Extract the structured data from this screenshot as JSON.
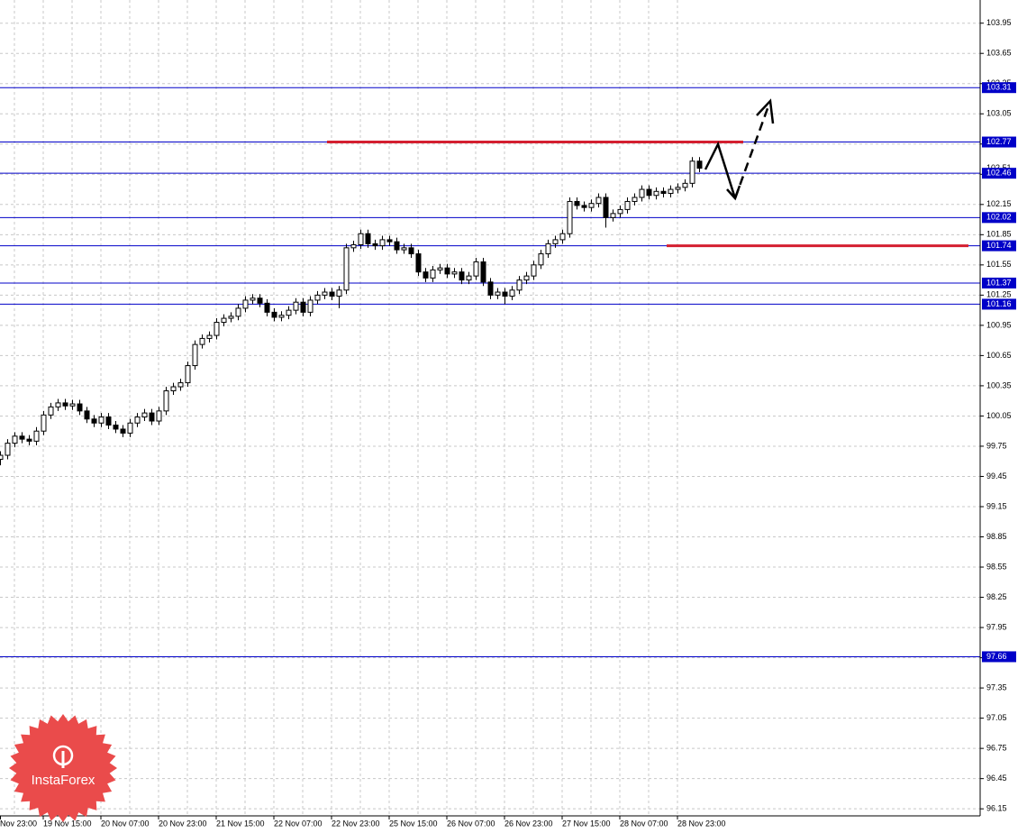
{
  "chart_data": {
    "type": "candlestick",
    "categories": [
      "Nov 23:00",
      null,
      null,
      null,
      null,
      null,
      null,
      null,
      "19 Nov 15:00",
      null,
      null,
      null,
      null,
      null,
      null,
      null,
      "20 Nov 07:00",
      null,
      null,
      null,
      null,
      null,
      null,
      null,
      "20 Nov 23:00",
      null,
      null,
      null,
      null,
      null,
      null,
      null,
      "21 Nov 15:00",
      null,
      null,
      null,
      null,
      null,
      null,
      null,
      "22 Nov 07:00",
      null,
      null,
      null,
      null,
      null,
      null,
      null,
      "22 Nov 23:00",
      null,
      null,
      null,
      null,
      null,
      null,
      null,
      "25 Nov 15:00",
      null,
      null,
      null,
      null,
      null,
      null,
      null,
      "26 Nov 07:00",
      null,
      null,
      null,
      null,
      null,
      null,
      null,
      "26 Nov 23:00",
      null,
      null,
      null,
      null,
      null,
      null,
      null,
      "27 Nov 15:00",
      null,
      null,
      null,
      null,
      null,
      null,
      null,
      "28 Nov 07:00",
      null,
      null,
      null,
      null,
      null,
      null,
      null,
      "28 Nov 23:00",
      null,
      null,
      null
    ],
    "open": [
      99.66,
      99.7,
      99.62,
      99.66,
      99.78,
      99.85,
      99.82,
      99.8,
      99.9,
      100.06,
      100.14,
      100.18,
      100.15,
      100.17,
      100.1,
      100.02,
      99.98,
      100.04,
      99.96,
      99.92,
      99.88,
      99.98,
      100.04,
      100.08,
      100.0,
      100.1,
      100.3,
      100.34,
      100.38,
      100.55,
      100.76,
      100.82,
      100.85,
      100.98,
      101.02,
      101.04,
      101.12,
      101.2,
      101.22,
      101.17,
      101.08,
      101.03,
      101.05,
      101.1,
      101.18,
      101.08,
      101.2,
      101.25,
      101.28,
      101.24,
      101.3,
      101.72,
      101.75,
      101.86,
      101.76,
      101.74,
      101.8,
      101.78,
      101.7,
      101.72,
      101.66,
      101.48,
      101.42,
      101.5,
      101.52,
      101.46,
      101.48,
      101.4,
      101.44,
      101.58,
      101.38,
      101.25,
      101.28,
      101.24,
      101.3,
      101.4,
      101.44,
      101.55,
      101.66,
      101.76,
      101.8,
      101.86,
      102.18,
      102.14,
      102.12,
      102.16,
      102.22,
      102.02,
      102.06,
      102.1,
      102.18,
      102.22,
      102.3,
      102.24,
      102.28,
      102.26,
      102.3,
      102.32,
      102.36,
      102.58
    ],
    "high": [
      99.74,
      99.74,
      99.7,
      99.82,
      99.89,
      99.89,
      99.86,
      99.94,
      100.1,
      100.18,
      100.22,
      100.22,
      100.21,
      100.21,
      100.14,
      100.06,
      100.08,
      100.08,
      100.0,
      99.96,
      100.02,
      100.08,
      100.12,
      100.12,
      100.14,
      100.34,
      100.38,
      100.42,
      100.59,
      100.8,
      100.86,
      100.89,
      101.02,
      101.06,
      101.08,
      101.16,
      101.24,
      101.26,
      101.26,
      101.21,
      101.12,
      101.09,
      101.14,
      101.22,
      101.22,
      101.24,
      101.29,
      101.32,
      101.32,
      101.34,
      101.76,
      101.79,
      101.9,
      101.9,
      101.8,
      101.84,
      101.84,
      101.82,
      101.76,
      101.76,
      101.7,
      101.52,
      101.54,
      101.56,
      101.56,
      101.52,
      101.52,
      101.48,
      101.62,
      101.62,
      101.42,
      101.32,
      101.32,
      101.34,
      101.44,
      101.48,
      101.59,
      101.7,
      101.8,
      101.84,
      101.9,
      102.22,
      102.22,
      102.18,
      102.2,
      102.26,
      102.26,
      102.1,
      102.14,
      102.22,
      102.26,
      102.34,
      102.34,
      102.32,
      102.32,
      102.34,
      102.36,
      102.4,
      102.62,
      102.62
    ],
    "low": [
      99.62,
      99.58,
      99.56,
      99.62,
      99.74,
      99.78,
      99.76,
      99.76,
      99.86,
      100.02,
      100.1,
      100.11,
      100.11,
      100.06,
      99.98,
      99.94,
      99.94,
      99.92,
      99.88,
      99.84,
      99.84,
      99.94,
      100.0,
      99.96,
      99.96,
      100.06,
      100.26,
      100.3,
      100.34,
      100.51,
      100.72,
      100.78,
      100.81,
      100.94,
      100.98,
      101.0,
      101.08,
      101.16,
      101.13,
      101.04,
      100.99,
      100.99,
      101.01,
      101.06,
      101.04,
      101.04,
      101.16,
      101.21,
      101.2,
      101.12,
      101.26,
      101.68,
      101.71,
      101.72,
      101.7,
      101.7,
      101.74,
      101.66,
      101.66,
      101.62,
      101.44,
      101.38,
      101.38,
      101.46,
      101.42,
      101.42,
      101.36,
      101.36,
      101.4,
      101.34,
      101.21,
      101.21,
      101.16,
      101.2,
      101.26,
      101.36,
      101.4,
      101.51,
      101.62,
      101.72,
      101.76,
      101.82,
      102.1,
      102.08,
      102.08,
      102.12,
      101.92,
      101.98,
      102.02,
      102.06,
      102.14,
      102.18,
      102.2,
      102.2,
      102.22,
      102.22,
      102.26,
      102.28,
      102.32,
      102.47
    ],
    "close": [
      99.7,
      99.62,
      99.66,
      99.78,
      99.85,
      99.82,
      99.8,
      99.9,
      100.06,
      100.14,
      100.18,
      100.15,
      100.17,
      100.1,
      100.02,
      99.98,
      100.04,
      99.96,
      99.92,
      99.88,
      99.98,
      100.04,
      100.08,
      100.0,
      100.1,
      100.3,
      100.34,
      100.38,
      100.55,
      100.76,
      100.82,
      100.85,
      100.98,
      101.02,
      101.04,
      101.12,
      101.2,
      101.22,
      101.17,
      101.08,
      101.03,
      101.05,
      101.1,
      101.18,
      101.08,
      101.2,
      101.25,
      101.28,
      101.24,
      101.3,
      101.72,
      101.75,
      101.86,
      101.76,
      101.74,
      101.8,
      101.78,
      101.7,
      101.72,
      101.66,
      101.48,
      101.42,
      101.5,
      101.52,
      101.46,
      101.48,
      101.4,
      101.44,
      101.58,
      101.38,
      101.25,
      101.28,
      101.24,
      101.3,
      101.4,
      101.44,
      101.55,
      101.66,
      101.76,
      101.8,
      101.86,
      102.18,
      102.14,
      102.12,
      102.16,
      102.22,
      102.02,
      102.06,
      102.1,
      102.18,
      102.22,
      102.3,
      102.24,
      102.28,
      102.26,
      102.3,
      102.32,
      102.36,
      102.58,
      102.51
    ],
    "up_color": "#ffffff",
    "down_color": "#000000",
    "ylim": [
      96.08,
      104.18
    ],
    "yticks": [
      96.15,
      96.45,
      96.75,
      97.05,
      97.35,
      97.65,
      97.95,
      98.25,
      98.55,
      98.85,
      99.15,
      99.45,
      99.75,
      100.05,
      100.35,
      100.65,
      100.95,
      101.25,
      101.55,
      101.85,
      102.15,
      102.45,
      102.75,
      103.05,
      103.35,
      103.65,
      103.95
    ],
    "grid": true,
    "levels": {
      "values": [
        103.31,
        102.77,
        102.46,
        102.02,
        101.74,
        101.37,
        101.16,
        97.66
      ],
      "color": "#0000c8"
    },
    "red_levels": {
      "values": [
        102.77,
        101.74
      ],
      "color": "#d41f30"
    },
    "last_price": 102.51
  },
  "logo": {
    "text": "InstaForex"
  }
}
